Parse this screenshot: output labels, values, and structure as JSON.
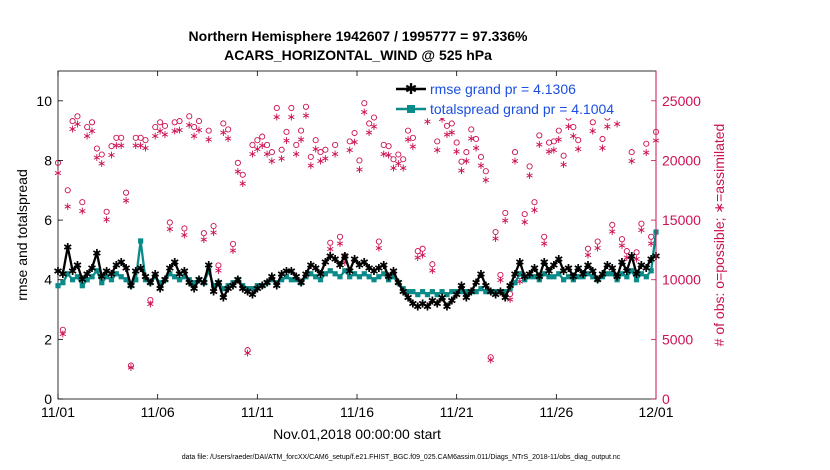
{
  "chart_data": {
    "type": "line",
    "title_line1": "Northern Hemisphere 1942607 / 1995777 = 97.336%",
    "title_line2": "ACARS_HORIZONTAL_WIND @ 525 hPa",
    "xlabel": "Nov.01,2018 00:00:00 start",
    "ylabel_left": "rmse and totalspread",
    "ylabel_right": "# of obs: o=possible; ∗=assimilated",
    "footnote": "data file: /Users/raeder/DAI/ATM_forcXX/CAM6_setup/f.e21.FHIST_BGC.f09_025.CAM6assim.011/Diags_NTrS_2018-11/obs_diag_output.nc",
    "x_range": [
      0,
      30
    ],
    "ylim_left": [
      0,
      11
    ],
    "ylim_right": [
      0,
      27500
    ],
    "x_ticks": [
      0,
      5,
      10,
      15,
      20,
      25,
      30
    ],
    "x_tick_labels": [
      "11/01",
      "11/06",
      "11/11",
      "11/16",
      "11/21",
      "11/26",
      "12/01"
    ],
    "y_left_ticks": [
      0,
      2,
      4,
      6,
      8,
      10
    ],
    "y_left_tick_labels": [
      "0",
      "2",
      "4",
      "6",
      "8",
      "10"
    ],
    "y_right_ticks": [
      0,
      5000,
      10000,
      15000,
      20000,
      25000
    ],
    "y_right_tick_labels": [
      "0",
      "5000",
      "10000",
      "15000",
      "20000",
      "25000"
    ],
    "colors": {
      "rmse": "#000000",
      "spread": "#0a8a88",
      "obs": "#cc1155",
      "right_axis": "#cc1155",
      "legend_text": "#1a4fe0"
    },
    "series": [
      {
        "name": "rmse",
        "legend": "rmse grand pr = 4.1306",
        "values": [
          4.3,
          4.2,
          5.1,
          4.3,
          4.5,
          4.0,
          4.2,
          4.4,
          4.9,
          4.1,
          4.3,
          4.2,
          4.5,
          4.6,
          4.4,
          3.8,
          4.3,
          4.4,
          4.1,
          3.9,
          4.2,
          3.7,
          4.0,
          4.4,
          4.6,
          4.2,
          4.3,
          3.9,
          3.7,
          4.0,
          3.9,
          4.5,
          3.6,
          3.9,
          3.4,
          3.7,
          3.8,
          4.0,
          3.7,
          3.6,
          3.5,
          3.7,
          3.8,
          3.9,
          4.1,
          3.8,
          4.2,
          4.3,
          4.3,
          4.1,
          3.9,
          4.2,
          4.5,
          4.4,
          4.2,
          4.6,
          4.8,
          4.7,
          4.5,
          4.8,
          4.3,
          4.7,
          4.5,
          4.6,
          4.4,
          4.3,
          4.4,
          4.5,
          4.1,
          4.3,
          3.9,
          3.6,
          3.4,
          3.2,
          3.1,
          3.2,
          3.1,
          3.3,
          3.2,
          3.4,
          3.1,
          3.3,
          3.5,
          3.8,
          3.4,
          3.6,
          3.9,
          4.2,
          3.8,
          3.6,
          3.5,
          3.6,
          3.4,
          3.8,
          4.2,
          4.6,
          4.1,
          4.2,
          4.4,
          4.1,
          4.6,
          4.3,
          4.5,
          4.7,
          4.3,
          4.4,
          4.1,
          4.4,
          4.2,
          4.5,
          4.3,
          4.0,
          4.2,
          4.5,
          4.4,
          4.1,
          4.6,
          4.3,
          4.8,
          4.2,
          4.5,
          4.4,
          4.7,
          4.8
        ]
      },
      {
        "name": "totalspread",
        "legend": "totalspread grand pr = 4.1004",
        "values": [
          3.8,
          3.9,
          4.2,
          4.0,
          4.1,
          3.8,
          4.0,
          4.1,
          4.3,
          3.9,
          4.1,
          4.0,
          4.2,
          4.1,
          4.0,
          3.8,
          4.0,
          5.3,
          4.0,
          3.9,
          4.1,
          3.9,
          4.0,
          4.2,
          4.1,
          4.0,
          4.1,
          4.0,
          3.9,
          4.0,
          3.9,
          4.3,
          3.8,
          3.9,
          3.7,
          3.8,
          3.9,
          4.0,
          3.8,
          3.7,
          3.7,
          3.8,
          3.8,
          3.9,
          4.0,
          3.9,
          4.0,
          4.1,
          4.0,
          4.0,
          3.9,
          4.1,
          4.2,
          4.1,
          4.0,
          4.2,
          4.3,
          4.2,
          4.1,
          4.3,
          4.1,
          4.2,
          4.1,
          4.2,
          4.1,
          4.0,
          4.1,
          4.2,
          4.0,
          4.1,
          3.9,
          3.7,
          3.6,
          3.6,
          3.5,
          3.6,
          3.5,
          3.6,
          3.5,
          3.6,
          3.5,
          3.6,
          3.6,
          3.6,
          3.6,
          3.6,
          3.6,
          3.7,
          3.6,
          3.6,
          3.6,
          3.6,
          3.6,
          3.7,
          3.9,
          4.2,
          4.0,
          4.1,
          4.1,
          4.0,
          4.2,
          4.1,
          4.1,
          4.2,
          4.0,
          4.1,
          4.0,
          4.1,
          4.1,
          4.2,
          4.1,
          4.0,
          4.1,
          4.2,
          4.2,
          4.0,
          4.2,
          4.1,
          4.3,
          4.0,
          4.2,
          4.1,
          4.3,
          5.6
        ]
      },
      {
        "name": "obs_possible",
        "values": [
          19800,
          5800,
          17500,
          23300,
          23700,
          16500,
          22800,
          23200,
          21000,
          20500,
          15700,
          21200,
          21900,
          21900,
          17300,
          2800,
          21900,
          21900,
          21700,
          8300,
          22800,
          23200,
          22900,
          14800,
          23200,
          23300,
          14300,
          23700,
          22800,
          23300,
          13900,
          22500,
          14500,
          11200,
          23100,
          22600,
          13000,
          19800,
          18800,
          4100,
          21300,
          21700,
          22000,
          21300,
          20700,
          24400,
          20900,
          22400,
          24400,
          21300,
          22500,
          24500,
          20300,
          21700,
          20700,
          20900,
          13100,
          21300,
          13600,
          12000,
          21600,
          22300,
          20000,
          24800,
          23100,
          23600,
          13200,
          21300,
          21200,
          20100,
          20500,
          20100,
          22500,
          21900,
          12400,
          12600,
          24000,
          11300,
          21600,
          24200,
          22900,
          23100,
          21500,
          19900,
          20700,
          22600,
          21800,
          20300,
          19100,
          3500,
          14000,
          10400,
          15600,
          8800,
          20700,
          10300,
          15500,
          19500,
          16500,
          22100,
          13600,
          21500,
          21600,
          22500,
          20400,
          23600,
          22800,
          21700,
          24700,
          12600,
          23200,
          13200,
          21800,
          23600,
          14600,
          23800,
          13400,
          12400,
          20700,
          12300,
          14700,
          21400,
          13600,
          22400
        ]
      },
      {
        "name": "obs_assimilated",
        "values": [
          19000,
          5500,
          16200,
          22700,
          23100,
          15800,
          22100,
          22500,
          20300,
          19800,
          15100,
          20500,
          21300,
          21300,
          16700,
          2700,
          21300,
          21300,
          21100,
          8000,
          22100,
          22500,
          22200,
          14300,
          22500,
          22600,
          13800,
          23000,
          22100,
          22600,
          13400,
          21800,
          14000,
          10800,
          22400,
          21900,
          12500,
          19100,
          18100,
          3900,
          20600,
          21000,
          21300,
          20600,
          20000,
          23700,
          20200,
          21700,
          23700,
          20600,
          21800,
          23800,
          19600,
          21000,
          20000,
          20200,
          12600,
          20600,
          13100,
          11500,
          20900,
          21600,
          19300,
          24100,
          22400,
          22900,
          12700,
          20600,
          20500,
          19400,
          19800,
          19400,
          21800,
          21200,
          11900,
          12100,
          23300,
          10800,
          20900,
          23500,
          22200,
          22400,
          20800,
          19200,
          20000,
          21900,
          21100,
          19600,
          18400,
          3300,
          13500,
          10000,
          15000,
          8400,
          20000,
          9900,
          14900,
          18800,
          15900,
          21400,
          13100,
          20800,
          20900,
          21800,
          19700,
          22900,
          22100,
          21000,
          24000,
          12100,
          22500,
          12700,
          21100,
          22900,
          14100,
          23100,
          12900,
          11900,
          20000,
          11800,
          14200,
          20700,
          13100,
          21700
        ]
      }
    ]
  }
}
